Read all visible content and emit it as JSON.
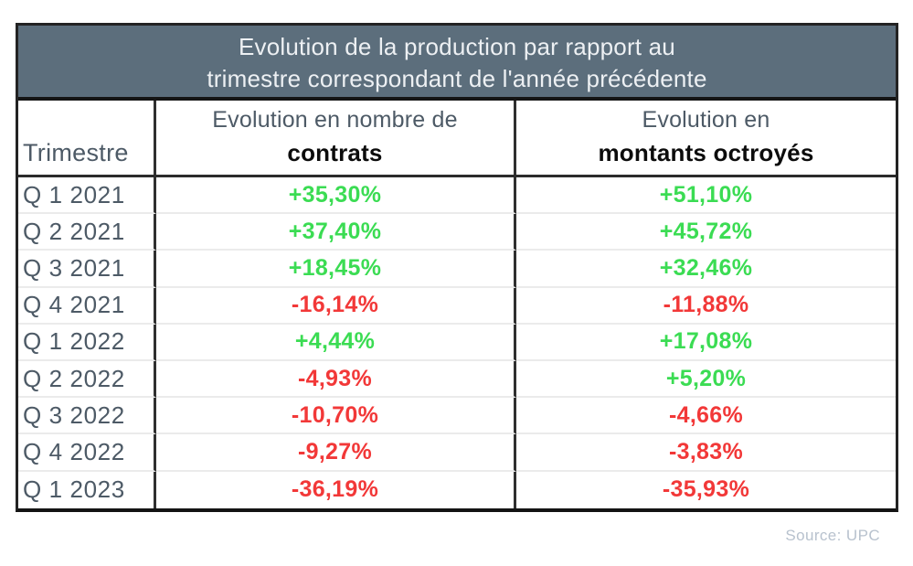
{
  "title": {
    "line1": "Evolution de la production par rapport au",
    "line2": "trimestre correspondant de l'année précédente"
  },
  "header": {
    "col_quarter": "Trimestre",
    "col_contracts_top": "Evolution en nombre de",
    "col_contracts_bold": "contrats",
    "col_amounts_top": "Evolution en",
    "col_amounts_bold": "montants octroyés"
  },
  "source": "Source: UPC",
  "colors": {
    "title_bg": "#5c6e7c",
    "title_text": "#edf0f3",
    "label_text": "#4d5a66",
    "positive": "#3bdc53",
    "negative": "#f23838",
    "source_text": "#b8c2ce"
  },
  "chart_data": {
    "type": "table",
    "title": "Evolution de la production par rapport au trimestre correspondant de l'année précédente",
    "columns": [
      "Trimestre",
      "Evolution en nombre de contrats",
      "Evolution en montants octroyés"
    ],
    "rows": [
      [
        "Q 1 2021",
        "+35,30%",
        "+51,10%"
      ],
      [
        "Q 2 2021",
        "+37,40%",
        "+45,72%"
      ],
      [
        "Q 3 2021",
        "+18,45%",
        "+32,46%"
      ],
      [
        "Q 4 2021",
        "-16,14%",
        "-11,88%"
      ],
      [
        "Q 1 2022",
        "+4,44%",
        "+17,08%"
      ],
      [
        "Q 2 2022",
        "-4,93%",
        "+5,20%"
      ],
      [
        "Q 3 2022",
        "-10,70%",
        "-4,66%"
      ],
      [
        "Q 4 2022",
        "-9,27%",
        "-3,83%"
      ],
      [
        "Q 1 2023",
        "-36,19%",
        "-35,93%"
      ]
    ]
  }
}
